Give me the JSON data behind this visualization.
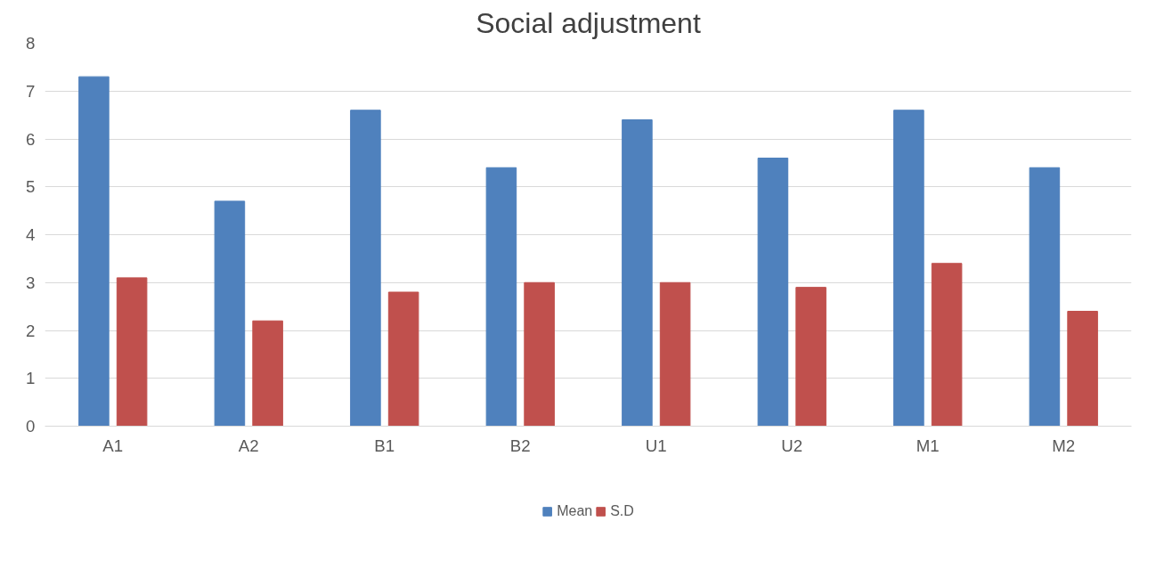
{
  "chart_data": {
    "type": "bar",
    "title": "Social adjustment",
    "categories": [
      "A1",
      "A2",
      "B1",
      "B2",
      "U1",
      "U2",
      "M1",
      "M2"
    ],
    "series": [
      {
        "name": "Mean",
        "color": "#4f81bd",
        "values": [
          7.3,
          4.7,
          6.6,
          5.4,
          6.4,
          5.6,
          6.6,
          5.4
        ]
      },
      {
        "name": "S.D",
        "color": "#c0504d",
        "values": [
          3.1,
          2.2,
          2.8,
          3.0,
          3.0,
          2.9,
          3.4,
          2.4
        ]
      }
    ],
    "ylim": [
      0,
      8
    ],
    "yticks": [
      0,
      1,
      2,
      3,
      4,
      5,
      6,
      7,
      8
    ],
    "grid": "y",
    "legend": "bottom"
  }
}
